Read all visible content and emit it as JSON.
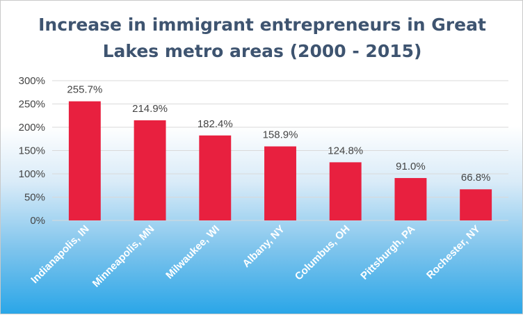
{
  "chart_data": {
    "type": "bar",
    "title_line1": "Increase in immigrant entrepreneurs in Great",
    "title_line2": "Lakes metro areas (2000 - 2015)",
    "xlabel": "",
    "ylabel": "",
    "categories": [
      "Indianapolis, IN",
      "Minneapolis, MN",
      "Milwaukee, WI",
      "Albany, NY",
      "Columbus, OH",
      "Pittsburgh, PA",
      "Rochester, NY"
    ],
    "values": [
      255.7,
      214.9,
      182.4,
      158.9,
      124.8,
      91.0,
      66.8
    ],
    "data_labels": [
      "255.7%",
      "214.9%",
      "182.4%",
      "158.9%",
      "124.8%",
      "91.0%",
      "66.8%"
    ],
    "ylim": [
      0,
      300
    ],
    "yticks": [
      0,
      50,
      100,
      150,
      200,
      250,
      300
    ],
    "ytick_labels": [
      "0%",
      "50%",
      "100%",
      "150%",
      "200%",
      "250%",
      "300%"
    ],
    "bar_color": "#e8203f",
    "grid": true,
    "legend": false
  }
}
